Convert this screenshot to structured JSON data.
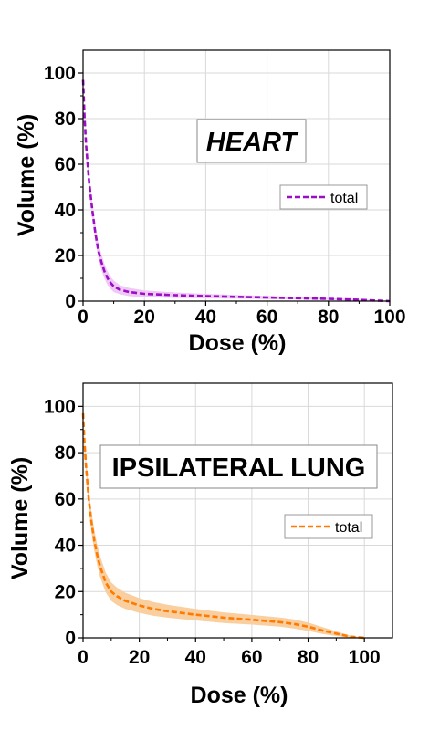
{
  "chart_data": [
    {
      "type": "line",
      "title": "HEART",
      "xlabel": "Dose (%)",
      "ylabel": "Volume (%)",
      "xlim": [
        0,
        100
      ],
      "ylim": [
        0,
        110
      ],
      "xticks": [
        0,
        20,
        40,
        60,
        80,
        100
      ],
      "yticks": [
        0,
        20,
        40,
        60,
        80,
        100
      ],
      "grid": true,
      "legend_position": "right",
      "series": [
        {
          "name": "total",
          "color": "#9b0fc4",
          "band_color": "#f0c8f7",
          "style": "dashed",
          "x": [
            0,
            0.5,
            1,
            2,
            3,
            4,
            5,
            6,
            7,
            8,
            9,
            10,
            12,
            15,
            20,
            30,
            40,
            50,
            60,
            70,
            80,
            90,
            95,
            100
          ],
          "y": [
            97,
            80,
            68,
            52,
            40,
            30,
            22,
            17,
            13,
            10,
            8,
            6.5,
            5,
            4,
            3.2,
            2.6,
            2.2,
            1.9,
            1.6,
            1.3,
            1.0,
            0.6,
            0.3,
            0
          ],
          "band": [
            0,
            1,
            1.5,
            2.5,
            3,
            3.5,
            3.5,
            3.5,
            3.2,
            3,
            2.7,
            2.5,
            2,
            1.8,
            1.5,
            1.2,
            1,
            0.8,
            0.7,
            0.5,
            0.4,
            0.3,
            0.2,
            0
          ]
        }
      ]
    },
    {
      "type": "line",
      "title": "IPSILATERAL LUNG",
      "xlabel": "Dose (%)",
      "ylabel": "Volume (%)",
      "xlim": [
        0,
        110
      ],
      "ylim": [
        0,
        110
      ],
      "xticks": [
        0,
        20,
        40,
        60,
        80,
        100
      ],
      "yticks": [
        0,
        20,
        40,
        60,
        80,
        100
      ],
      "grid": true,
      "legend_position": "right",
      "series": [
        {
          "name": "total",
          "color": "#ff7a00",
          "band_color": "#f9cfa0",
          "style": "dashed",
          "x": [
            0,
            0.5,
            1,
            2,
            3,
            4,
            5,
            6,
            8,
            10,
            12,
            15,
            20,
            25,
            30,
            40,
            50,
            60,
            70,
            75,
            80,
            85,
            90,
            95,
            100
          ],
          "y": [
            97,
            85,
            75,
            60,
            50,
            42,
            36,
            31,
            24,
            20,
            18,
            16,
            14,
            12.5,
            11.5,
            10,
            8.7,
            7.8,
            6.8,
            6,
            4.8,
            3.2,
            1.8,
            0.5,
            0
          ],
          "band": [
            0,
            2,
            3,
            4,
            4.5,
            4.5,
            4.5,
            4.5,
            4.3,
            4,
            3.8,
            3.5,
            3.2,
            3,
            2.8,
            2.5,
            2.3,
            2.1,
            2,
            2,
            1.8,
            1.5,
            1,
            0.5,
            0
          ]
        }
      ]
    }
  ]
}
